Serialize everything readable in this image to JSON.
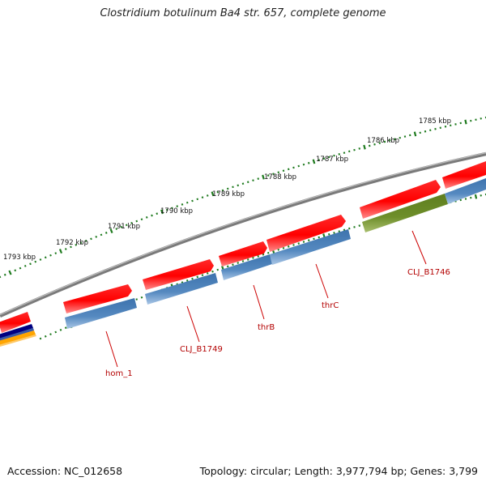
{
  "title": "Clostridium botulinum Ba4 str. 657, complete genome",
  "footer": {
    "accession": "Accession: NC_012658",
    "summary": "Topology: circular; Length: 3,977,794 bp; Genes: 3,799"
  },
  "ruler": {
    "labels": [
      "1785 kbp",
      "1786 kbp",
      "1787 kbp",
      "1788 kbp",
      "1789 kbp",
      "1790 kbp",
      "1791 kbp",
      "1792 kbp",
      "1793 kbp"
    ]
  },
  "genes": {
    "labels": [
      "CLJ_B1746",
      "thrC",
      "thrB",
      "CLJ_B1749",
      "hom_1"
    ]
  },
  "colors": {
    "backbone": "#7a7a7a",
    "gene_arrow": "#ff0000",
    "cds_blue": "#4f84bb",
    "cds_olive": "#6e8e2a",
    "tick_green": "#1e7a1e",
    "label_red": "#b30000",
    "edge_navy": "#000080",
    "edge_orange": "#ffa500"
  }
}
